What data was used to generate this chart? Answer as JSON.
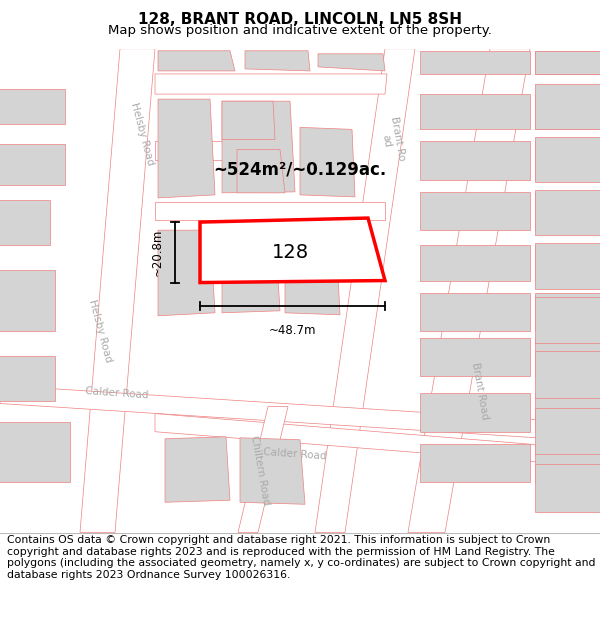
{
  "title": "128, BRANT ROAD, LINCOLN, LN5 8SH",
  "subtitle": "Map shows position and indicative extent of the property.",
  "footer": "Contains OS data © Crown copyright and database right 2021. This information is subject to Crown copyright and database rights 2023 and is reproduced with the permission of HM Land Registry. The polygons (including the associated geometry, namely x, y co-ordinates) are subject to Crown copyright and database rights 2023 Ordnance Survey 100026316.",
  "map_bg": "#f2f2f2",
  "road_fill": "#ffffff",
  "road_stroke": "#f08080",
  "building_fill": "#d4d4d4",
  "building_stroke": "#f08080",
  "highlight_stroke": "#ff0000",
  "highlight_lw": 2.5,
  "label_number": "128",
  "area_label": "~524m²/~0.129ac.",
  "dim_width": "~48.7m",
  "dim_height": "~20.8m",
  "title_fontsize": 11,
  "subtitle_fontsize": 9.5,
  "footer_fontsize": 7.8,
  "road_label_color": "#aaaaaa",
  "road_label_size": 7.5
}
